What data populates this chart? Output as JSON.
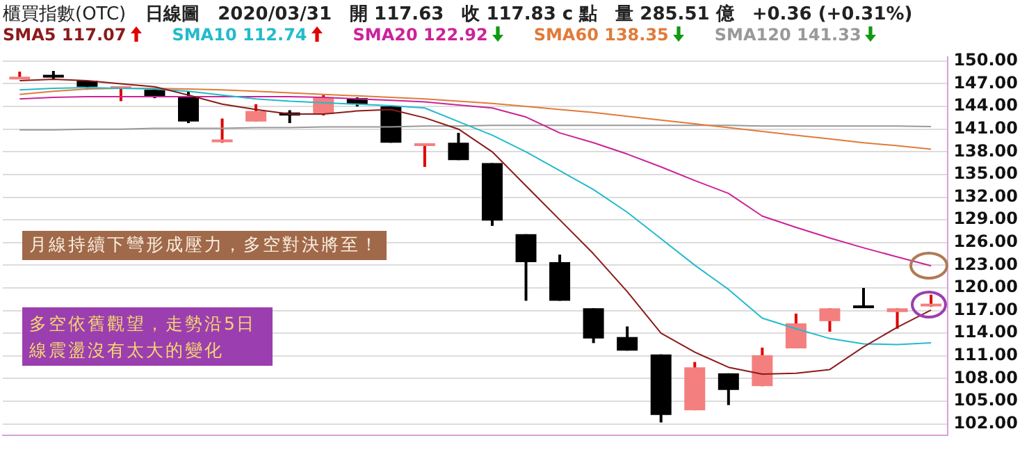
{
  "chart_data": {
    "type": "candlestick",
    "title": "櫃買指數(OTC)",
    "subtitle": "日線圖　2020/03/31　開 117.63　收 117.83 c 點　量 285.51 億　+0.36 (+0.31%)",
    "categories": [
      null,
      null,
      null,
      null,
      null,
      null,
      null,
      null,
      null,
      null,
      null,
      null,
      null,
      null,
      null,
      null,
      null,
      null,
      null,
      null,
      null,
      null,
      null,
      null,
      null,
      null,
      null,
      null
    ],
    "ohlc": [
      [
        147.6,
        148.6,
        147.6,
        147.9
      ],
      [
        148.1,
        148.7,
        147.6,
        147.9
      ],
      [
        147.4,
        147.4,
        146.2,
        146.6
      ],
      [
        146.4,
        146.6,
        144.7,
        146.6
      ],
      [
        146.2,
        146.4,
        145.1,
        145.3
      ],
      [
        145.3,
        146.0,
        141.8,
        142.0
      ],
      [
        139.4,
        142.4,
        139.2,
        139.5
      ],
      [
        142.0,
        144.3,
        142.0,
        143.4
      ],
      [
        143.2,
        143.5,
        141.8,
        142.8
      ],
      [
        143.0,
        145.5,
        142.8,
        145.2
      ],
      [
        145.1,
        145.2,
        144.0,
        144.3
      ],
      [
        144.0,
        144.0,
        139.2,
        139.2
      ],
      [
        138.9,
        139.0,
        136.0,
        139.0
      ],
      [
        139.2,
        140.5,
        136.9,
        136.9
      ],
      [
        136.5,
        136.5,
        128.2,
        128.9
      ],
      [
        127.1,
        127.1,
        118.3,
        123.4
      ],
      [
        123.4,
        124.4,
        118.3,
        118.3
      ],
      [
        117.3,
        117.3,
        112.7,
        113.3
      ],
      [
        113.5,
        114.9,
        111.7,
        111.7
      ],
      [
        111.2,
        111.2,
        102.2,
        103.2
      ],
      [
        103.8,
        110.2,
        103.8,
        109.5
      ],
      [
        108.7,
        108.7,
        104.5,
        106.5
      ],
      [
        107.0,
        112.1,
        107.0,
        111.1
      ],
      [
        112.0,
        116.6,
        112.0,
        115.3
      ],
      [
        115.6,
        117.3,
        114.2,
        117.3
      ],
      [
        117.6,
        120.0,
        117.4,
        117.4
      ],
      [
        116.8,
        117.3,
        114.6,
        117.3
      ],
      [
        117.63,
        119.1,
        117.5,
        117.83
      ]
    ],
    "series": [
      {
        "name": "SMA5 117.07",
        "type": "line",
        "color": "#8b1a1a",
        "values": [
          147.4,
          147.6,
          147.4,
          147.0,
          146.6,
          145.5,
          144.3,
          143.6,
          143.0,
          143.0,
          143.4,
          143.6,
          142.5,
          141.0,
          138.0,
          133.5,
          129.0,
          124.5,
          119.5,
          114.0,
          111.5,
          109.5,
          108.6,
          108.7,
          109.2,
          112.2,
          114.8,
          117.07
        ]
      },
      {
        "name": "SMA10 112.74",
        "type": "line",
        "color": "#22bbcc",
        "values": [
          146.2,
          146.4,
          146.5,
          146.4,
          146.3,
          146.0,
          145.5,
          145.0,
          144.7,
          144.5,
          144.3,
          144.1,
          143.8,
          142.0,
          140.2,
          138.0,
          135.5,
          133.0,
          130.0,
          126.5,
          123.0,
          119.8,
          116.0,
          114.6,
          113.3,
          112.6,
          112.5,
          112.74
        ]
      },
      {
        "name": "SMA20 122.92",
        "type": "line",
        "color": "#cc2299",
        "values": [
          145.0,
          145.2,
          145.3,
          145.3,
          145.3,
          145.3,
          145.3,
          145.3,
          145.3,
          145.2,
          145.0,
          144.8,
          144.6,
          144.2,
          143.8,
          142.6,
          140.5,
          139.2,
          137.7,
          136.0,
          134.2,
          132.5,
          129.5,
          128.0,
          126.6,
          125.3,
          124.1,
          122.92
        ]
      },
      {
        "name": "SMA60 138.35",
        "type": "line",
        "color": "#e07b39",
        "values": [
          145.6,
          146.0,
          146.3,
          146.4,
          146.4,
          146.3,
          146.2,
          146.0,
          145.8,
          145.6,
          145.4,
          145.2,
          145.0,
          144.7,
          144.4,
          144.0,
          143.6,
          143.2,
          142.7,
          142.2,
          141.7,
          141.2,
          140.7,
          140.2,
          139.7,
          139.2,
          138.8,
          138.35
        ]
      },
      {
        "name": "SMA120 141.33",
        "type": "line",
        "color": "#999999",
        "values": [
          140.9,
          140.9,
          141.0,
          141.0,
          141.1,
          141.1,
          141.1,
          141.2,
          141.2,
          141.3,
          141.3,
          141.3,
          141.4,
          141.4,
          141.5,
          141.5,
          141.5,
          141.5,
          141.5,
          141.5,
          141.5,
          141.5,
          141.4,
          141.4,
          141.4,
          141.4,
          141.4,
          141.33
        ]
      }
    ],
    "ylim": [
      100.5,
      150.5
    ],
    "yticks": [
      {
        "value": 102,
        "label": "102.00"
      },
      {
        "value": 105,
        "label": "105.00"
      },
      {
        "value": 108,
        "label": "108.00"
      },
      {
        "value": 111,
        "label": "111.00"
      },
      {
        "value": 114,
        "label": "114.00"
      },
      {
        "value": 117,
        "label": "117.00"
      },
      {
        "value": 120,
        "label": "120.00"
      },
      {
        "value": 123,
        "label": "123.00"
      },
      {
        "value": 126,
        "label": "126.00"
      },
      {
        "value": 129,
        "label": "129.00"
      },
      {
        "value": 132,
        "label": "132.00"
      },
      {
        "value": 135,
        "label": "135.00"
      },
      {
        "value": 138,
        "label": "138.00"
      },
      {
        "value": 141,
        "label": "141.00"
      },
      {
        "value": 144,
        "label": "144.00"
      },
      {
        "value": 147,
        "label": "147.00"
      },
      {
        "value": 150,
        "label": "150.00"
      }
    ],
    "grid": "y",
    "legend": "top left",
    "tick_labels": "y",
    "marker": "none",
    "line_style": "solid",
    "annotations": [
      "月線持續下彎形成壓力，多空對決將至！",
      "多空依舊觀望，走勢沿5日線震盪沒有太大的變化"
    ]
  }
}
